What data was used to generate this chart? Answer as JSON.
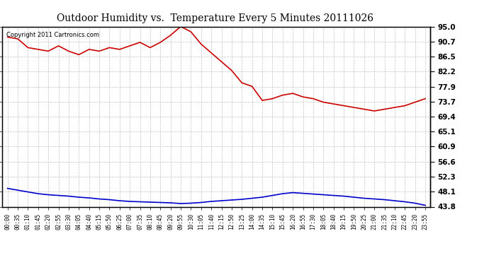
{
  "title": "Outdoor Humidity vs.  Temperature Every 5 Minutes 20111026",
  "copyright_text": "Copyright 2011 Cartronics.com",
  "background_color": "#ffffff",
  "plot_bg_color": "#ffffff",
  "grid_color": "#aaaaaa",
  "line_color_humidity": "#cc0000",
  "line_color_temp": "#0000cc",
  "yticks": [
    43.8,
    48.1,
    52.3,
    56.6,
    60.9,
    65.1,
    69.4,
    73.7,
    77.9,
    82.2,
    86.5,
    90.7,
    95.0
  ],
  "ymin": 43.8,
  "ymax": 95.0,
  "x_labels": [
    "00:00",
    "00:35",
    "01:10",
    "01:45",
    "02:20",
    "02:55",
    "03:30",
    "04:05",
    "04:40",
    "05:15",
    "05:50",
    "06:25",
    "07:00",
    "07:35",
    "08:10",
    "08:45",
    "09:20",
    "09:55",
    "10:30",
    "11:05",
    "11:40",
    "12:15",
    "12:50",
    "13:25",
    "14:00",
    "14:35",
    "15:10",
    "15:45",
    "16:20",
    "16:55",
    "17:30",
    "18:05",
    "18:40",
    "19:15",
    "19:50",
    "20:25",
    "21:00",
    "21:35",
    "22:10",
    "22:45",
    "23:20",
    "23:55"
  ],
  "humidity_data": [
    92.0,
    91.5,
    89.0,
    88.5,
    88.0,
    89.5,
    88.0,
    87.0,
    88.5,
    88.0,
    89.0,
    88.5,
    89.5,
    90.5,
    89.0,
    90.5,
    92.5,
    95.0,
    93.5,
    90.0,
    87.5,
    85.0,
    82.5,
    79.0,
    78.0,
    74.0,
    74.5,
    75.5,
    76.0,
    75.0,
    74.5,
    73.5,
    73.0,
    72.5,
    72.0,
    71.5,
    71.0,
    71.5,
    72.0,
    72.5,
    73.5,
    74.5
  ],
  "temp_data": [
    49.0,
    48.5,
    48.0,
    47.5,
    47.2,
    47.0,
    46.8,
    46.5,
    46.3,
    46.0,
    45.8,
    45.5,
    45.3,
    45.2,
    45.1,
    45.0,
    44.9,
    44.7,
    44.8,
    45.0,
    45.3,
    45.5,
    45.7,
    45.9,
    46.2,
    46.5,
    47.0,
    47.5,
    47.8,
    47.6,
    47.4,
    47.2,
    47.0,
    46.8,
    46.5,
    46.2,
    46.0,
    45.8,
    45.5,
    45.2,
    44.8,
    44.2
  ]
}
